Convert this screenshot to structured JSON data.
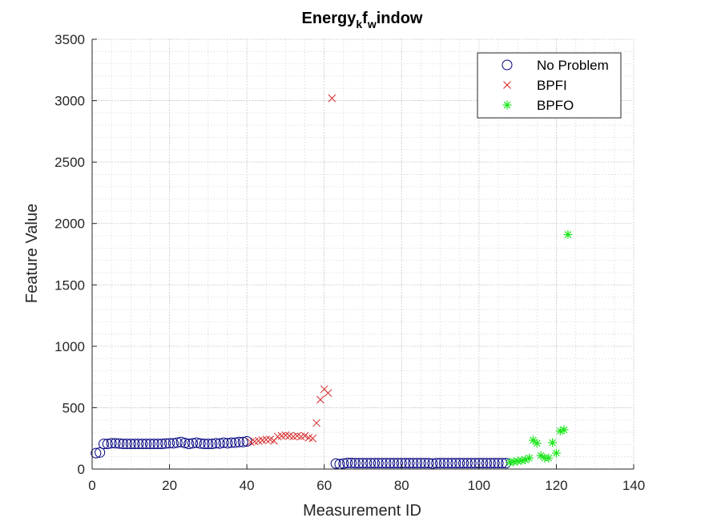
{
  "chart_data": {
    "type": "scatter",
    "title": {
      "main": "Energy",
      "sub1": "k",
      "mid": "f",
      "sub2": "w",
      "tail": "indow"
    },
    "xlabel": "Measurement ID",
    "ylabel": "Feature Value",
    "xlim": [
      0,
      140
    ],
    "ylim": [
      0,
      3500
    ],
    "xticks": [
      "0",
      "20",
      "40",
      "60",
      "80",
      "100",
      "120",
      "140"
    ],
    "yticks": [
      "0",
      "500",
      "1000",
      "1500",
      "2000",
      "2500",
      "3000",
      "3500"
    ],
    "grid": true,
    "minor_grid": true,
    "legend_position": "top-right",
    "series": [
      {
        "name": "No Problem",
        "marker": "circle",
        "color": "#00007f",
        "points": [
          [
            1,
            130
          ],
          [
            2,
            135
          ],
          [
            3,
            205
          ],
          [
            4,
            205
          ],
          [
            5,
            210
          ],
          [
            6,
            210
          ],
          [
            7,
            208
          ],
          [
            8,
            205
          ],
          [
            9,
            205
          ],
          [
            10,
            205
          ],
          [
            11,
            205
          ],
          [
            12,
            205
          ],
          [
            13,
            205
          ],
          [
            14,
            205
          ],
          [
            15,
            205
          ],
          [
            16,
            205
          ],
          [
            17,
            205
          ],
          [
            18,
            205
          ],
          [
            19,
            208
          ],
          [
            20,
            210
          ],
          [
            21,
            210
          ],
          [
            22,
            215
          ],
          [
            23,
            220
          ],
          [
            24,
            212
          ],
          [
            25,
            205
          ],
          [
            26,
            210
          ],
          [
            27,
            215
          ],
          [
            28,
            208
          ],
          [
            29,
            205
          ],
          [
            30,
            205
          ],
          [
            31,
            205
          ],
          [
            32,
            210
          ],
          [
            33,
            208
          ],
          [
            34,
            215
          ],
          [
            35,
            210
          ],
          [
            36,
            215
          ],
          [
            37,
            215
          ],
          [
            38,
            220
          ],
          [
            39,
            220
          ],
          [
            40,
            225
          ],
          [
            63,
            45
          ],
          [
            64,
            40
          ],
          [
            65,
            45
          ],
          [
            66,
            50
          ],
          [
            67,
            50
          ],
          [
            68,
            48
          ],
          [
            69,
            48
          ],
          [
            70,
            48
          ],
          [
            71,
            48
          ],
          [
            72,
            48
          ],
          [
            73,
            48
          ],
          [
            74,
            48
          ],
          [
            75,
            48
          ],
          [
            76,
            48
          ],
          [
            77,
            48
          ],
          [
            78,
            48
          ],
          [
            79,
            48
          ],
          [
            80,
            48
          ],
          [
            81,
            48
          ],
          [
            82,
            48
          ],
          [
            83,
            48
          ],
          [
            84,
            48
          ],
          [
            85,
            48
          ],
          [
            86,
            48
          ],
          [
            87,
            48
          ],
          [
            88,
            45
          ],
          [
            89,
            48
          ],
          [
            90,
            48
          ],
          [
            91,
            48
          ],
          [
            92,
            48
          ],
          [
            93,
            48
          ],
          [
            94,
            48
          ],
          [
            95,
            48
          ],
          [
            96,
            48
          ],
          [
            97,
            48
          ],
          [
            98,
            48
          ],
          [
            99,
            48
          ],
          [
            100,
            48
          ],
          [
            101,
            48
          ],
          [
            102,
            48
          ],
          [
            103,
            48
          ],
          [
            104,
            48
          ],
          [
            105,
            48
          ],
          [
            106,
            48
          ],
          [
            107,
            48
          ]
        ]
      },
      {
        "name": "BPFI",
        "marker": "x",
        "color": "#d62728",
        "points": [
          [
            41,
            220
          ],
          [
            42,
            225
          ],
          [
            43,
            230
          ],
          [
            44,
            235
          ],
          [
            45,
            240
          ],
          [
            46,
            240
          ],
          [
            47,
            230
          ],
          [
            48,
            265
          ],
          [
            49,
            270
          ],
          [
            50,
            275
          ],
          [
            51,
            270
          ],
          [
            52,
            265
          ],
          [
            53,
            270
          ],
          [
            54,
            265
          ],
          [
            55,
            270
          ],
          [
            56,
            255
          ],
          [
            57,
            250
          ],
          [
            58,
            375
          ],
          [
            59,
            565
          ],
          [
            60,
            650
          ],
          [
            61,
            620
          ],
          [
            62,
            3020
          ]
        ]
      },
      {
        "name": "BPFO",
        "marker": "asterisk",
        "color": "#19e619",
        "points": [
          [
            108,
            55
          ],
          [
            109,
            60
          ],
          [
            110,
            65
          ],
          [
            111,
            70
          ],
          [
            112,
            75
          ],
          [
            113,
            90
          ],
          [
            114,
            235
          ],
          [
            115,
            210
          ],
          [
            116,
            110
          ],
          [
            117,
            90
          ],
          [
            118,
            90
          ],
          [
            119,
            215
          ],
          [
            120,
            130
          ],
          [
            121,
            310
          ],
          [
            122,
            320
          ],
          [
            123,
            1910
          ]
        ]
      }
    ]
  }
}
